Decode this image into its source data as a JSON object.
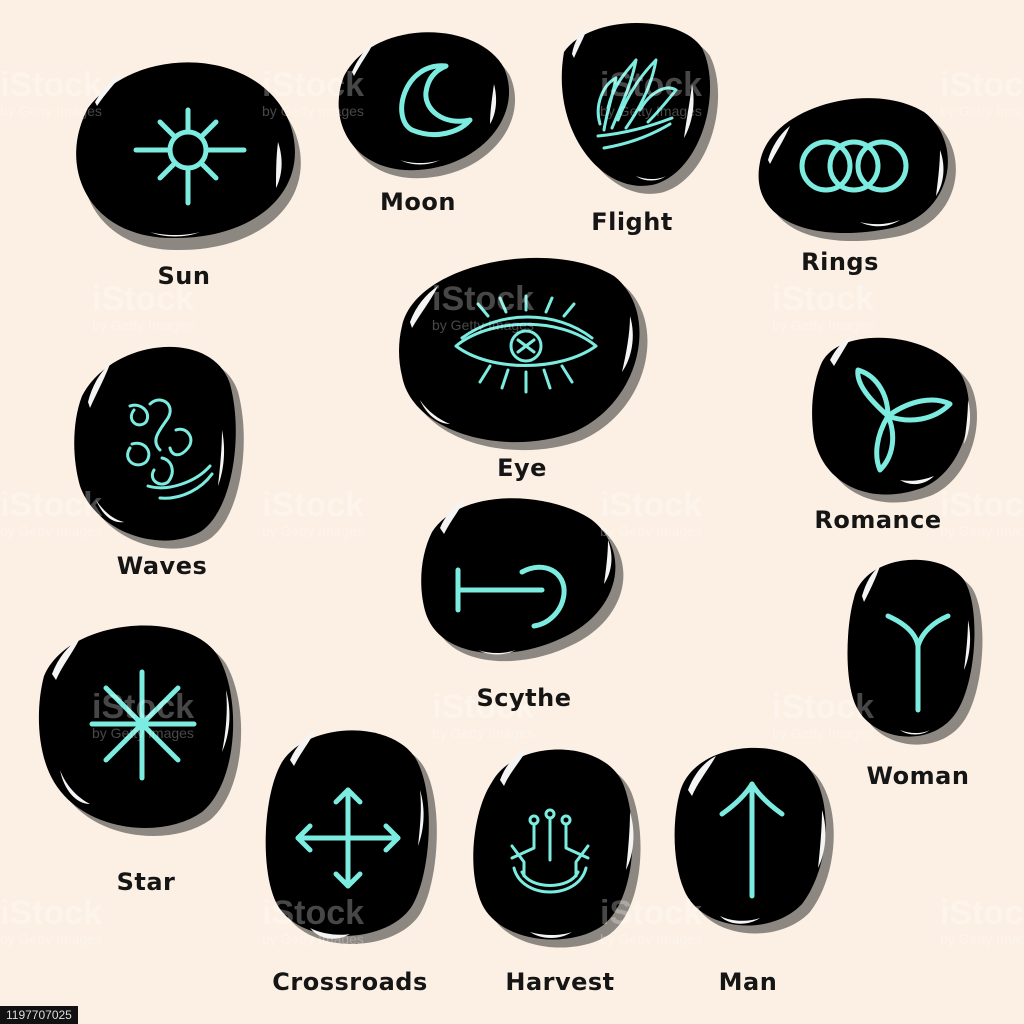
{
  "stones": [
    {
      "id": "sun",
      "label": "Sun"
    },
    {
      "id": "moon",
      "label": "Moon"
    },
    {
      "id": "flight",
      "label": "Flight"
    },
    {
      "id": "rings",
      "label": "Rings"
    },
    {
      "id": "eye",
      "label": "Eye"
    },
    {
      "id": "waves",
      "label": "Waves"
    },
    {
      "id": "romance",
      "label": "Romance"
    },
    {
      "id": "scythe",
      "label": "Scythe"
    },
    {
      "id": "woman",
      "label": "Woman"
    },
    {
      "id": "star",
      "label": "Star"
    },
    {
      "id": "crossroads",
      "label": "Crossroads"
    },
    {
      "id": "harvest",
      "label": "Harvest"
    },
    {
      "id": "man",
      "label": "Man"
    }
  ],
  "watermark": {
    "main": "iStock",
    "sub": "by Getty Images"
  },
  "stock_id": "1197707025",
  "colors": {
    "background": "#fcf0e4",
    "stone": "#000000",
    "rune": "#7cece0",
    "shadow": "#8c8781",
    "label": "#151515"
  }
}
